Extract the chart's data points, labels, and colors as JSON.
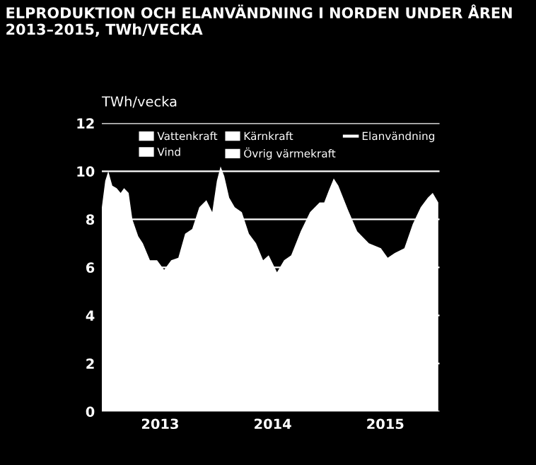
{
  "chart_data": {
    "type": "area",
    "title": "ELPRODUKTION OCH ELANVÄNDNING I NORDEN UNDER ÅREN\n2013–2015, TWh/VECKA",
    "ylabel": "TWh/vecka",
    "x": [
      "2012-12-24",
      "2013-01-04",
      "2013-01-14",
      "2013-01-27",
      "2013-02-10",
      "2013-02-23",
      "2013-03-06",
      "2013-03-21",
      "2013-04-02",
      "2013-04-21",
      "2013-05-06",
      "2013-05-29",
      "2013-06-21",
      "2013-07-14",
      "2013-08-06",
      "2013-08-29",
      "2013-09-20",
      "2013-10-13",
      "2013-11-05",
      "2013-11-28",
      "2013-12-17",
      "2014-01-01",
      "2014-01-13",
      "2014-01-25",
      "2014-02-10",
      "2014-02-28",
      "2014-03-23",
      "2014-04-15",
      "2014-05-08",
      "2014-05-31",
      "2014-06-18",
      "2014-07-15",
      "2014-08-07",
      "2014-08-30",
      "2014-09-30",
      "2014-10-30",
      "2014-11-30",
      "2014-12-15",
      "2014-12-30",
      "2015-01-15",
      "2015-01-30",
      "2015-03-02",
      "2015-04-01",
      "2015-05-09",
      "2015-06-17",
      "2015-07-09",
      "2015-08-01",
      "2015-09-01",
      "2015-09-28",
      "2015-10-24",
      "2015-11-16",
      "2015-12-02",
      "2015-12-20"
    ],
    "series": [
      {
        "name": "Vattenkraft",
        "color": "#ffffff",
        "values": [
          null,
          null,
          null,
          null,
          null,
          null,
          null,
          null,
          null,
          null,
          null,
          null,
          null,
          null,
          null,
          null,
          null,
          null,
          null,
          null,
          null,
          null,
          null,
          null,
          null,
          null,
          null,
          null,
          null,
          null,
          null,
          null,
          null,
          null,
          null,
          null,
          null,
          null,
          null,
          null,
          null,
          null,
          null,
          null,
          null,
          null,
          null,
          null,
          null,
          null,
          null,
          null,
          null
        ]
      },
      {
        "name": "Vind",
        "color": "#ffffff",
        "values": [
          null,
          null,
          null,
          null,
          null,
          null,
          null,
          null,
          null,
          null,
          null,
          null,
          null,
          null,
          null,
          null,
          null,
          null,
          null,
          null,
          null,
          null,
          null,
          null,
          null,
          null,
          null,
          null,
          null,
          null,
          null,
          null,
          null,
          null,
          null,
          null,
          null,
          null,
          null,
          null,
          null,
          null,
          null,
          null,
          null,
          null,
          null,
          null,
          null,
          null,
          null,
          null,
          null
        ]
      },
      {
        "name": "Kärnkraft",
        "color": "#ffffff",
        "values": [
          null,
          null,
          null,
          null,
          null,
          null,
          null,
          null,
          null,
          null,
          null,
          null,
          null,
          null,
          null,
          null,
          null,
          null,
          null,
          null,
          null,
          null,
          null,
          null,
          null,
          null,
          null,
          null,
          null,
          null,
          null,
          null,
          null,
          null,
          null,
          null,
          null,
          null,
          null,
          null,
          null,
          null,
          null,
          null,
          null,
          null,
          null,
          null,
          null,
          null,
          null,
          null,
          null
        ]
      },
      {
        "name": "Övrig värmekraft",
        "color": "#ffffff",
        "values": [
          null,
          null,
          null,
          null,
          null,
          null,
          null,
          null,
          null,
          null,
          null,
          null,
          null,
          null,
          null,
          null,
          null,
          null,
          null,
          null,
          null,
          null,
          null,
          null,
          null,
          null,
          null,
          null,
          null,
          null,
          null,
          null,
          null,
          null,
          null,
          null,
          null,
          null,
          null,
          null,
          null,
          null,
          null,
          null,
          null,
          null,
          null,
          null,
          null,
          null,
          null,
          null,
          null
        ]
      },
      {
        "color": "#ffffff",
        "values": [
          8.5,
          9.6,
          10.0,
          9.4,
          9.3,
          9.1,
          9.3,
          9.1,
          8.0,
          7.3,
          7.0,
          6.3,
          6.3,
          5.9,
          6.3,
          6.4,
          7.4,
          7.6,
          8.5,
          8.8,
          8.3,
          9.6,
          10.2,
          9.8,
          8.9,
          8.5,
          8.3,
          7.4,
          7.0,
          6.3,
          6.5,
          5.8,
          6.3,
          6.5,
          7.5,
          8.3,
          8.7,
          8.7,
          9.2,
          9.7,
          9.4,
          8.4,
          7.5,
          7.0,
          6.8,
          6.4,
          6.6,
          6.8,
          7.8,
          8.5,
          8.9,
          9.1,
          8.7
        ]
      },
      {
        "name": "Elanvändning",
        "type": "line",
        "color": "#ffffff",
        "values": [
          null,
          null,
          null,
          null,
          null,
          null,
          null,
          null,
          null,
          null,
          null,
          null,
          null,
          null,
          null,
          null,
          null,
          null,
          null,
          null,
          null,
          null,
          null,
          null,
          null,
          null,
          null,
          null,
          null,
          null,
          null,
          null,
          null,
          null,
          null,
          null,
          null,
          null,
          null,
          null,
          null,
          null,
          null,
          null,
          null,
          null,
          null,
          null,
          null,
          null,
          null,
          null,
          null
        ]
      }
    ],
    "xlim": [
      "2012-12-24",
      "2015-12-24"
    ],
    "xticks": [
      {
        "value": "2013-07-01",
        "label": "2013"
      },
      {
        "value": "2014-07-01",
        "label": "2014"
      },
      {
        "value": "2015-07-01",
        "label": "2015"
      }
    ],
    "ylim": [
      0,
      12
    ],
    "yticks": [
      0,
      2,
      4,
      6,
      8,
      10,
      12
    ],
    "grid": "y",
    "legend": "top"
  }
}
